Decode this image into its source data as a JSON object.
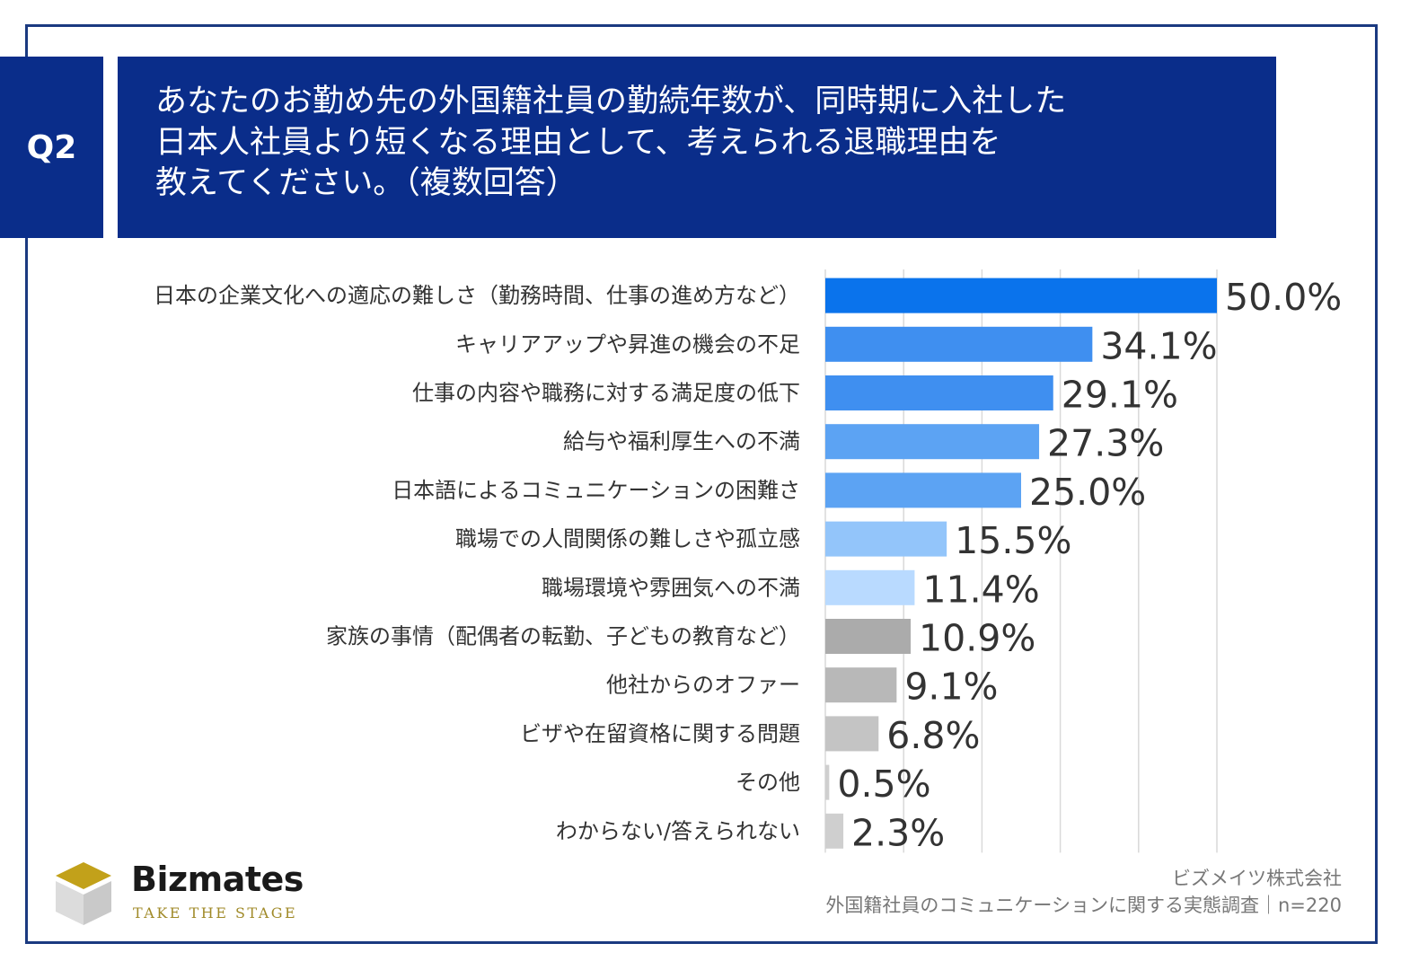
{
  "header": {
    "question_tag": "Q2",
    "title_lines": [
      "あなたのお勤め先の外国籍社員の勤続年数が、同時期に入社した",
      "日本人社員より短くなる理由として、考えられる退職理由を",
      "教えてください。（複数回答）"
    ]
  },
  "chart_data": {
    "type": "bar",
    "orientation": "horizontal",
    "categories": [
      "日本の企業文化への適応の難しさ（勤務時間、仕事の進め方など）",
      "キャリアアップや昇進の機会の不足",
      "仕事の内容や職務に対する満足度の低下",
      "給与や福利厚生への不満",
      "日本語によるコミュニケーションの困難さ",
      "職場での人間関係の難しさや孤立感",
      "職場環境や雰囲気への不満",
      "家族の事情（配偶者の転勤、子どもの教育など）",
      "他社からのオファー",
      "ビザや在留資格に関する問題",
      "その他",
      "わからない/答えられない"
    ],
    "values": [
      50.0,
      34.1,
      29.1,
      27.3,
      25.0,
      15.5,
      11.4,
      10.9,
      9.1,
      6.8,
      0.5,
      2.3
    ],
    "value_labels": [
      "50.0%",
      "34.1%",
      "29.1%",
      "27.3%",
      "25.0%",
      "15.5%",
      "11.4%",
      "10.9%",
      "9.1%",
      "6.8%",
      "0.5%",
      "2.3%"
    ],
    "bar_colors": [
      "#0a73ec",
      "#3f8ff0",
      "#3f8ff0",
      "#5ca3f3",
      "#5ca3f3",
      "#93c5fa",
      "#b9daff",
      "#ababab",
      "#b8b8b8",
      "#c4c4c4",
      "#cfcfcf",
      "#cfcfcf"
    ],
    "xlim": [
      0,
      50
    ],
    "grid": true,
    "unit": "%"
  },
  "brand": {
    "name": "Bizmates",
    "tagline": "TAKE THE STAGE",
    "gold": "#c2a11a",
    "gray": "#d9d9d9"
  },
  "source": {
    "company": "ビズメイツ株式会社",
    "survey": "外国籍社員のコミュニケーションに関する実態調査｜n=220"
  }
}
